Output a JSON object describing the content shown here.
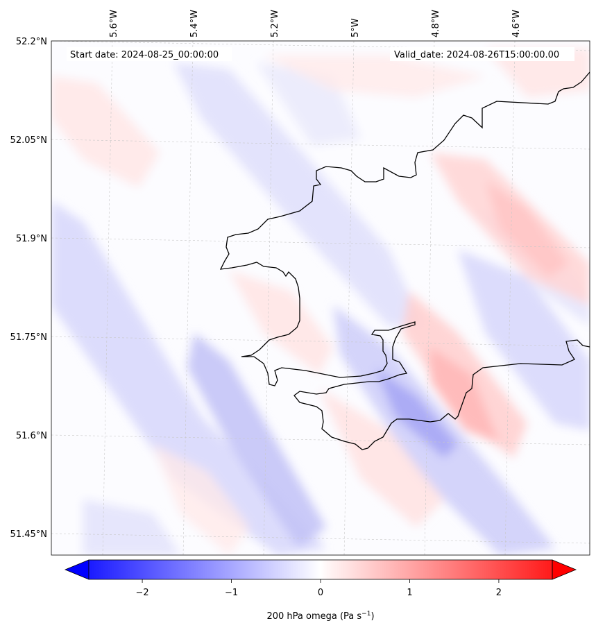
{
  "map": {
    "start_date": "Start date: 2024-08-25_00:00:00",
    "valid_date": "Valid_date: 2024-08-26T15:00:00.00",
    "lon_labels": [
      "5.6°W",
      "5.4°W",
      "5.2°W",
      "5°W",
      "4.8°W",
      "4.6°W"
    ],
    "lat_labels": [
      "52.2°N",
      "52.05°N",
      "51.9°N",
      "51.75°N",
      "51.6°N",
      "51.45°N"
    ],
    "field_colors": {
      "negative": "#0000ff",
      "zero": "#ffffff",
      "positive": "#ff0000"
    },
    "coastline_color": "#000000"
  },
  "colorbar": {
    "ticks": [
      "−2",
      "−1",
      "0",
      "1",
      "2"
    ],
    "tick_values": [
      -2,
      -1,
      0,
      1,
      2
    ],
    "range": [
      -2.6,
      2.6
    ],
    "label": "200 hPa omega (Pa s",
    "label_sup": "−1",
    "label_end": ")"
  }
}
